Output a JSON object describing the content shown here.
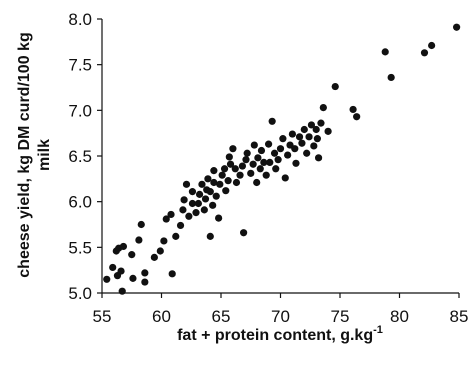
{
  "chart_data": {
    "type": "scatter",
    "xlabel": "fat + protein content, g.kg",
    "xlabel_superscript": "-1",
    "ylabel_line1": "cheese yield, kg DM curd/100 kg",
    "ylabel_line2": "milk",
    "xlim": [
      55,
      85
    ],
    "ylim": [
      5.0,
      8.0
    ],
    "x_ticks": [
      "55",
      "60",
      "65",
      "70",
      "75",
      "80",
      "85"
    ],
    "y_ticks": [
      "5.0",
      "5.5",
      "6.0",
      "6.5",
      "7.0",
      "7.5",
      "8.0"
    ],
    "marker_color": "#111111",
    "grid": false,
    "legend": "none",
    "points": [
      [
        55.4,
        5.15
      ],
      [
        55.9,
        5.28
      ],
      [
        56.3,
        5.19
      ],
      [
        56.2,
        5.46
      ],
      [
        56.4,
        5.49
      ],
      [
        56.8,
        5.51
      ],
      [
        56.6,
        5.24
      ],
      [
        56.7,
        5.02
      ],
      [
        57.6,
        5.16
      ],
      [
        57.5,
        5.42
      ],
      [
        58.1,
        5.58
      ],
      [
        58.3,
        5.75
      ],
      [
        58.6,
        5.22
      ],
      [
        58.6,
        5.12
      ],
      [
        59.4,
        5.39
      ],
      [
        59.9,
        5.46
      ],
      [
        60.2,
        5.57
      ],
      [
        60.4,
        5.81
      ],
      [
        60.8,
        5.86
      ],
      [
        60.9,
        5.21
      ],
      [
        61.2,
        5.62
      ],
      [
        61.6,
        5.74
      ],
      [
        61.8,
        5.91
      ],
      [
        61.9,
        6.02
      ],
      [
        62.1,
        6.19
      ],
      [
        62.3,
        5.84
      ],
      [
        62.6,
        5.98
      ],
      [
        62.6,
        6.11
      ],
      [
        62.9,
        5.88
      ],
      [
        63.1,
        5.98
      ],
      [
        63.2,
        6.08
      ],
      [
        63.4,
        6.19
      ],
      [
        63.6,
        5.91
      ],
      [
        63.7,
        6.03
      ],
      [
        63.8,
        6.13
      ],
      [
        63.9,
        6.25
      ],
      [
        64.1,
        5.62
      ],
      [
        64.1,
        6.11
      ],
      [
        64.3,
        5.96
      ],
      [
        64.4,
        6.21
      ],
      [
        64.4,
        6.34
      ],
      [
        64.6,
        6.06
      ],
      [
        64.8,
        5.82
      ],
      [
        64.9,
        6.19
      ],
      [
        65.1,
        6.29
      ],
      [
        65.3,
        6.36
      ],
      [
        65.4,
        6.12
      ],
      [
        65.6,
        6.23
      ],
      [
        65.7,
        6.49
      ],
      [
        65.8,
        6.41
      ],
      [
        66.0,
        6.58
      ],
      [
        66.2,
        6.36
      ],
      [
        66.3,
        6.21
      ],
      [
        66.6,
        6.29
      ],
      [
        66.8,
        6.39
      ],
      [
        66.9,
        5.66
      ],
      [
        67.1,
        6.46
      ],
      [
        67.2,
        6.53
      ],
      [
        67.5,
        6.31
      ],
      [
        67.7,
        6.41
      ],
      [
        67.8,
        6.62
      ],
      [
        68.0,
        6.21
      ],
      [
        68.1,
        6.48
      ],
      [
        68.3,
        6.36
      ],
      [
        68.4,
        6.56
      ],
      [
        68.6,
        6.43
      ],
      [
        68.8,
        6.29
      ],
      [
        69.0,
        6.63
      ],
      [
        69.1,
        6.43
      ],
      [
        69.3,
        6.88
      ],
      [
        69.5,
        6.53
      ],
      [
        69.6,
        6.36
      ],
      [
        69.8,
        6.46
      ],
      [
        70.0,
        6.58
      ],
      [
        70.2,
        6.69
      ],
      [
        70.4,
        6.26
      ],
      [
        70.6,
        6.51
      ],
      [
        70.8,
        6.62
      ],
      [
        71.0,
        6.74
      ],
      [
        71.2,
        6.58
      ],
      [
        71.3,
        6.42
      ],
      [
        71.6,
        6.71
      ],
      [
        71.8,
        6.64
      ],
      [
        72.0,
        6.79
      ],
      [
        72.2,
        6.53
      ],
      [
        72.4,
        6.71
      ],
      [
        72.6,
        6.84
      ],
      [
        72.8,
        6.61
      ],
      [
        73.0,
        6.79
      ],
      [
        73.1,
        6.69
      ],
      [
        73.4,
        6.86
      ],
      [
        73.6,
        7.03
      ],
      [
        73.2,
        6.48
      ],
      [
        74.0,
        6.77
      ],
      [
        74.6,
        7.26
      ],
      [
        76.1,
        7.01
      ],
      [
        76.4,
        6.93
      ],
      [
        78.8,
        7.64
      ],
      [
        79.3,
        7.36
      ],
      [
        82.1,
        7.63
      ],
      [
        82.7,
        7.71
      ],
      [
        84.8,
        7.91
      ]
    ]
  }
}
